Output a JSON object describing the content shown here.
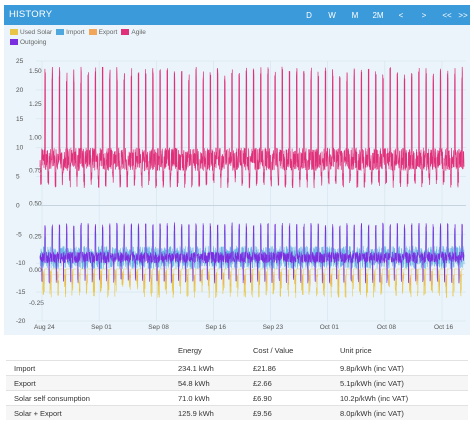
{
  "header": {
    "title": "HISTORY",
    "buttons": [
      "D",
      "W",
      "M",
      "2M",
      "<",
      ">",
      "<<",
      ">>"
    ]
  },
  "legend": {
    "items": [
      {
        "label": "Used Solar",
        "color": "#e8c547"
      },
      {
        "label": "Import",
        "color": "#4ea8de"
      },
      {
        "label": "Export",
        "color": "#f2a65a"
      },
      {
        "label": "Agile",
        "color": "#e0307a"
      },
      {
        "label": "Outgoing",
        "color": "#7a2ee0"
      }
    ]
  },
  "chart_data": {
    "type": "line",
    "x_labels": [
      "Aug 24",
      "Sep 01",
      "Sep 08",
      "Sep 16",
      "Sep 23",
      "Oct 01",
      "Oct 08",
      "Oct 16"
    ],
    "y_left_ticks": [
      "25",
      "20",
      "15",
      "10",
      "5",
      "0",
      "-5",
      "-10",
      "-15",
      "-20"
    ],
    "y_left_range": [
      -20,
      25
    ],
    "y_right_ticks": [
      "1.50",
      "1.25",
      "1.00",
      "0.75",
      "0.50",
      "0.25",
      "0.00",
      "-0.25"
    ],
    "y_right_range": [
      -0.25,
      1.5
    ],
    "series": [
      {
        "name": "Agile",
        "color": "#e0307a",
        "daily_peak_p": 24,
        "baseline_p": 8,
        "trough_p": 3
      },
      {
        "name": "Outgoing",
        "color": "#7a2ee0",
        "daily_peak_p": -3.5,
        "baseline_p": -9,
        "trough_p": -13.5
      },
      {
        "name": "Import",
        "color": "#4ea8de",
        "level_kwh": 0.1
      },
      {
        "name": "Used Solar",
        "color": "#e8c547",
        "level_kwh": -0.05
      },
      {
        "name": "Export",
        "color": "#f2a65a",
        "level_kwh": -0.08
      }
    ],
    "days": 59,
    "grid": true,
    "legend_placement": "top-left"
  },
  "table": {
    "columns": [
      "",
      "Energy",
      "Cost / Value",
      "Unit price"
    ],
    "rows": [
      {
        "label": "Import",
        "energy": "234.1 kWh",
        "cost": "£21.86",
        "unit": "9.8p/kWh (inc VAT)"
      },
      {
        "label": "Export",
        "energy": "54.8 kWh",
        "cost": "£2.66",
        "unit": "5.1p/kWh (inc VAT)"
      },
      {
        "label": "Solar self consumption",
        "energy": "71.0 kWh",
        "cost": "£6.90",
        "unit": "10.2p/kWh (inc VAT)"
      },
      {
        "label": "Solar + Export",
        "energy": "125.9 kWh",
        "cost": "£9.56",
        "unit": "8.0p/kWh (inc VAT)"
      }
    ]
  }
}
